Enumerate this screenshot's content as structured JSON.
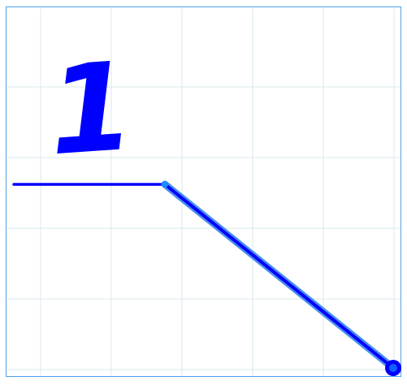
{
  "drawing": {
    "digit": "1",
    "colors": {
      "frame": "#4da3ea",
      "grid": "#d8e9ee",
      "ink": "#0000ff",
      "halo": "#4a90ee",
      "endpoint_fill": "#1060ff"
    },
    "icons": {
      "mid_handle": "control-point-icon",
      "end_handle": "control-point-icon"
    }
  }
}
